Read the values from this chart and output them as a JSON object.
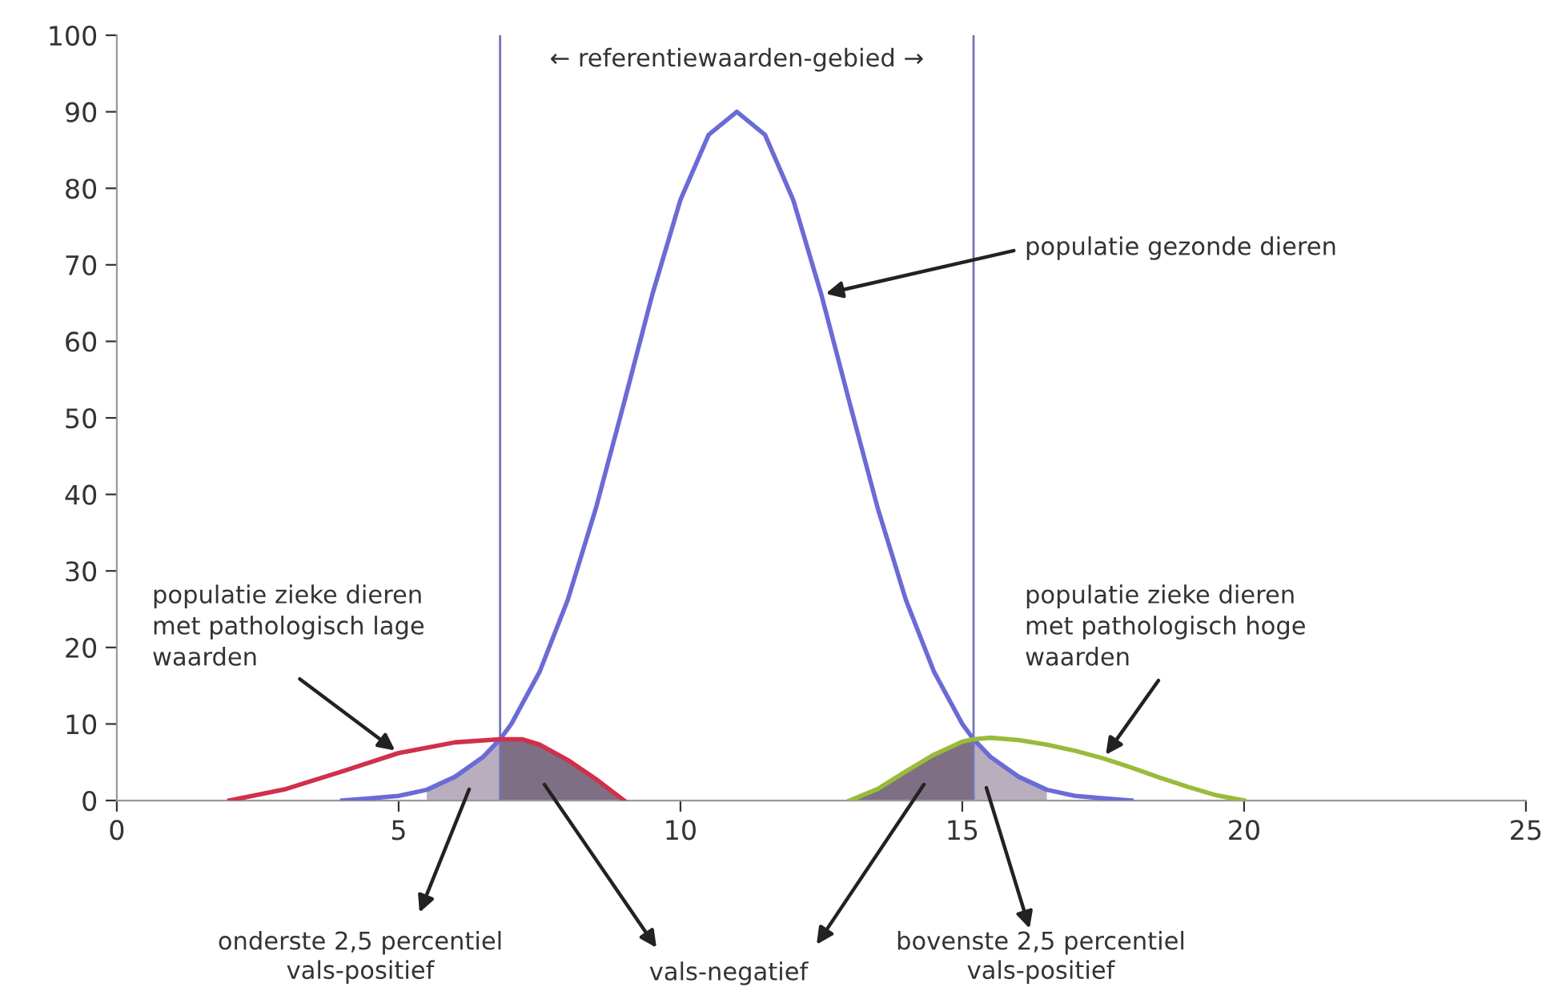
{
  "chart_data": {
    "type": "line",
    "xlim": [
      0,
      25
    ],
    "ylim": [
      0,
      100
    ],
    "xticks": [
      0,
      5,
      10,
      15,
      20,
      25
    ],
    "yticks": [
      0,
      10,
      20,
      30,
      40,
      50,
      60,
      70,
      80,
      90,
      100
    ],
    "grid": false,
    "marker": "none",
    "line_style": "solid",
    "series": [
      {
        "type": "area",
        "color": "#b9aebd",
        "x": [
          5.5,
          6,
          6.5,
          6.8
        ],
        "values": [
          1.4,
          3.1,
          5.7,
          8
        ]
      },
      {
        "type": "area",
        "color": "#7e6f84",
        "x": [
          6.8,
          7.2,
          7.5,
          8,
          8.5,
          9
        ],
        "values": [
          8,
          8,
          7.3,
          5.3,
          2.8,
          0
        ]
      },
      {
        "type": "area",
        "color": "#7e6f84",
        "x": [
          13,
          13.5,
          14,
          14.5,
          15,
          15.2
        ],
        "values": [
          0,
          1.5,
          3.8,
          6,
          7.7,
          8
        ]
      },
      {
        "type": "area",
        "color": "#b9aebd",
        "x": [
          15.2,
          15.5,
          16,
          16.5
        ],
        "values": [
          8,
          5.7,
          3.1,
          1.4
        ]
      },
      {
        "color": "#6b6bd6",
        "x": [
          4,
          4.5,
          5,
          5.5,
          6,
          6.5,
          6.8,
          7,
          7.5,
          8,
          8.5,
          9,
          9.5,
          10,
          10.5,
          11,
          11.5,
          12,
          12.5,
          13,
          13.5,
          14,
          14.5,
          15,
          15.2,
          15.5,
          16,
          16.5,
          17,
          17.5,
          18
        ],
        "values": [
          0,
          0.3,
          0.6,
          1.4,
          3.1,
          5.7,
          8,
          10,
          16.8,
          26.2,
          38.2,
          52,
          66.1,
          78.5,
          87,
          90,
          87,
          78.5,
          66.1,
          52,
          38.2,
          26.2,
          16.8,
          10,
          8,
          5.7,
          3.1,
          1.4,
          0.6,
          0.3,
          0
        ]
      },
      {
        "color": "#d0304a",
        "x": [
          2,
          3,
          4,
          5,
          6,
          6.8,
          7.2,
          7.5,
          8,
          8.5,
          9
        ],
        "values": [
          0,
          1.5,
          3.8,
          6.2,
          7.6,
          8,
          8,
          7.3,
          5.3,
          2.8,
          0
        ]
      },
      {
        "color": "#9abb3a",
        "x": [
          13,
          13.5,
          14,
          14.5,
          15,
          15.2,
          15.5,
          16,
          16.5,
          17,
          17.5,
          18,
          18.5,
          19,
          19.5,
          20
        ],
        "values": [
          0,
          1.5,
          3.8,
          6,
          7.7,
          8,
          8.2,
          7.9,
          7.3,
          6.5,
          5.5,
          4.3,
          3,
          1.8,
          0.7,
          0
        ]
      }
    ],
    "ref_lines": [
      {
        "axis": "x",
        "value": 6.8,
        "color": "#7474b8"
      },
      {
        "axis": "x",
        "value": 15.2,
        "color": "#7474b8"
      }
    ],
    "annotations": [
      "← referentiewaarden-gebied →",
      {
        "text": "populatie gezonde dieren",
        "x": 12.5,
        "y": 66.1
      },
      {
        "text": "populatie zieke dieren\nmet pathologisch lage\nwaarden",
        "x": 5,
        "y": 6.2
      },
      {
        "text": "populatie zieke dieren\nmet pathologisch hoge\nwaarden",
        "x": 17.5,
        "y": 5.5
      },
      "onderste 2,5 percentiel\nvals-positief",
      "vals-negatief",
      "bovenste 2,5 percentiel\nvals-positief"
    ]
  }
}
